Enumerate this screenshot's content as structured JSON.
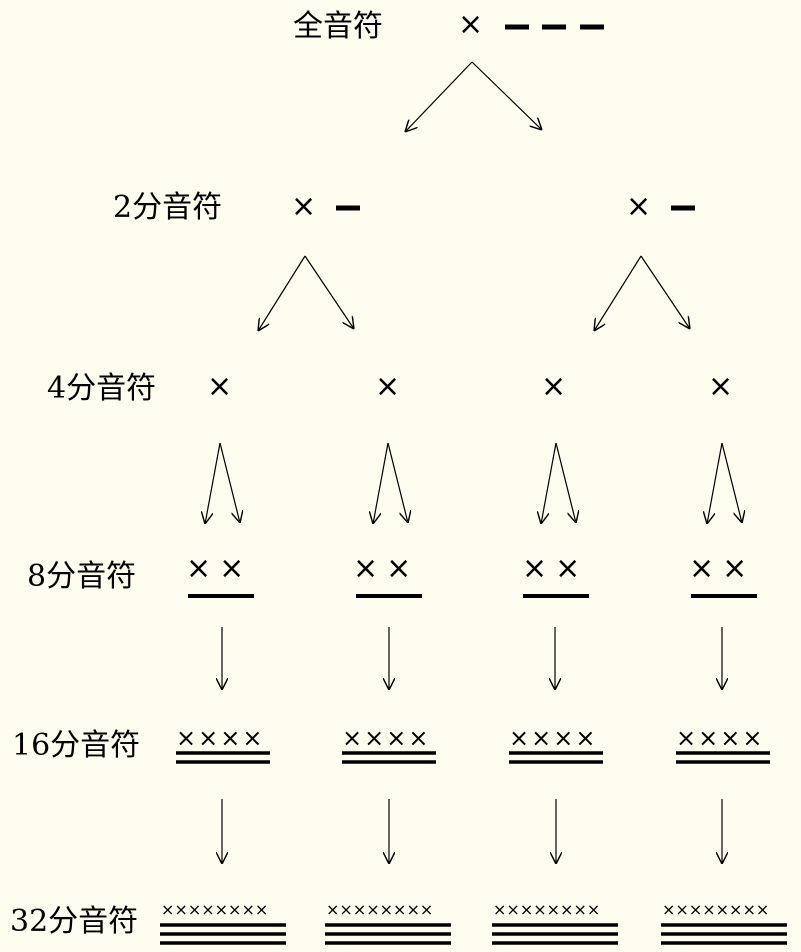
{
  "labels": {
    "whole": "全音符",
    "half": "2分音符",
    "quarter": "4分音符",
    "eighth": "8分音符",
    "sixteenth": "16分音符",
    "thirtysecond": "32分音符"
  },
  "notation": {
    "x1": "×",
    "x2": "××",
    "x4": "××××",
    "x8": "××××××××"
  }
}
